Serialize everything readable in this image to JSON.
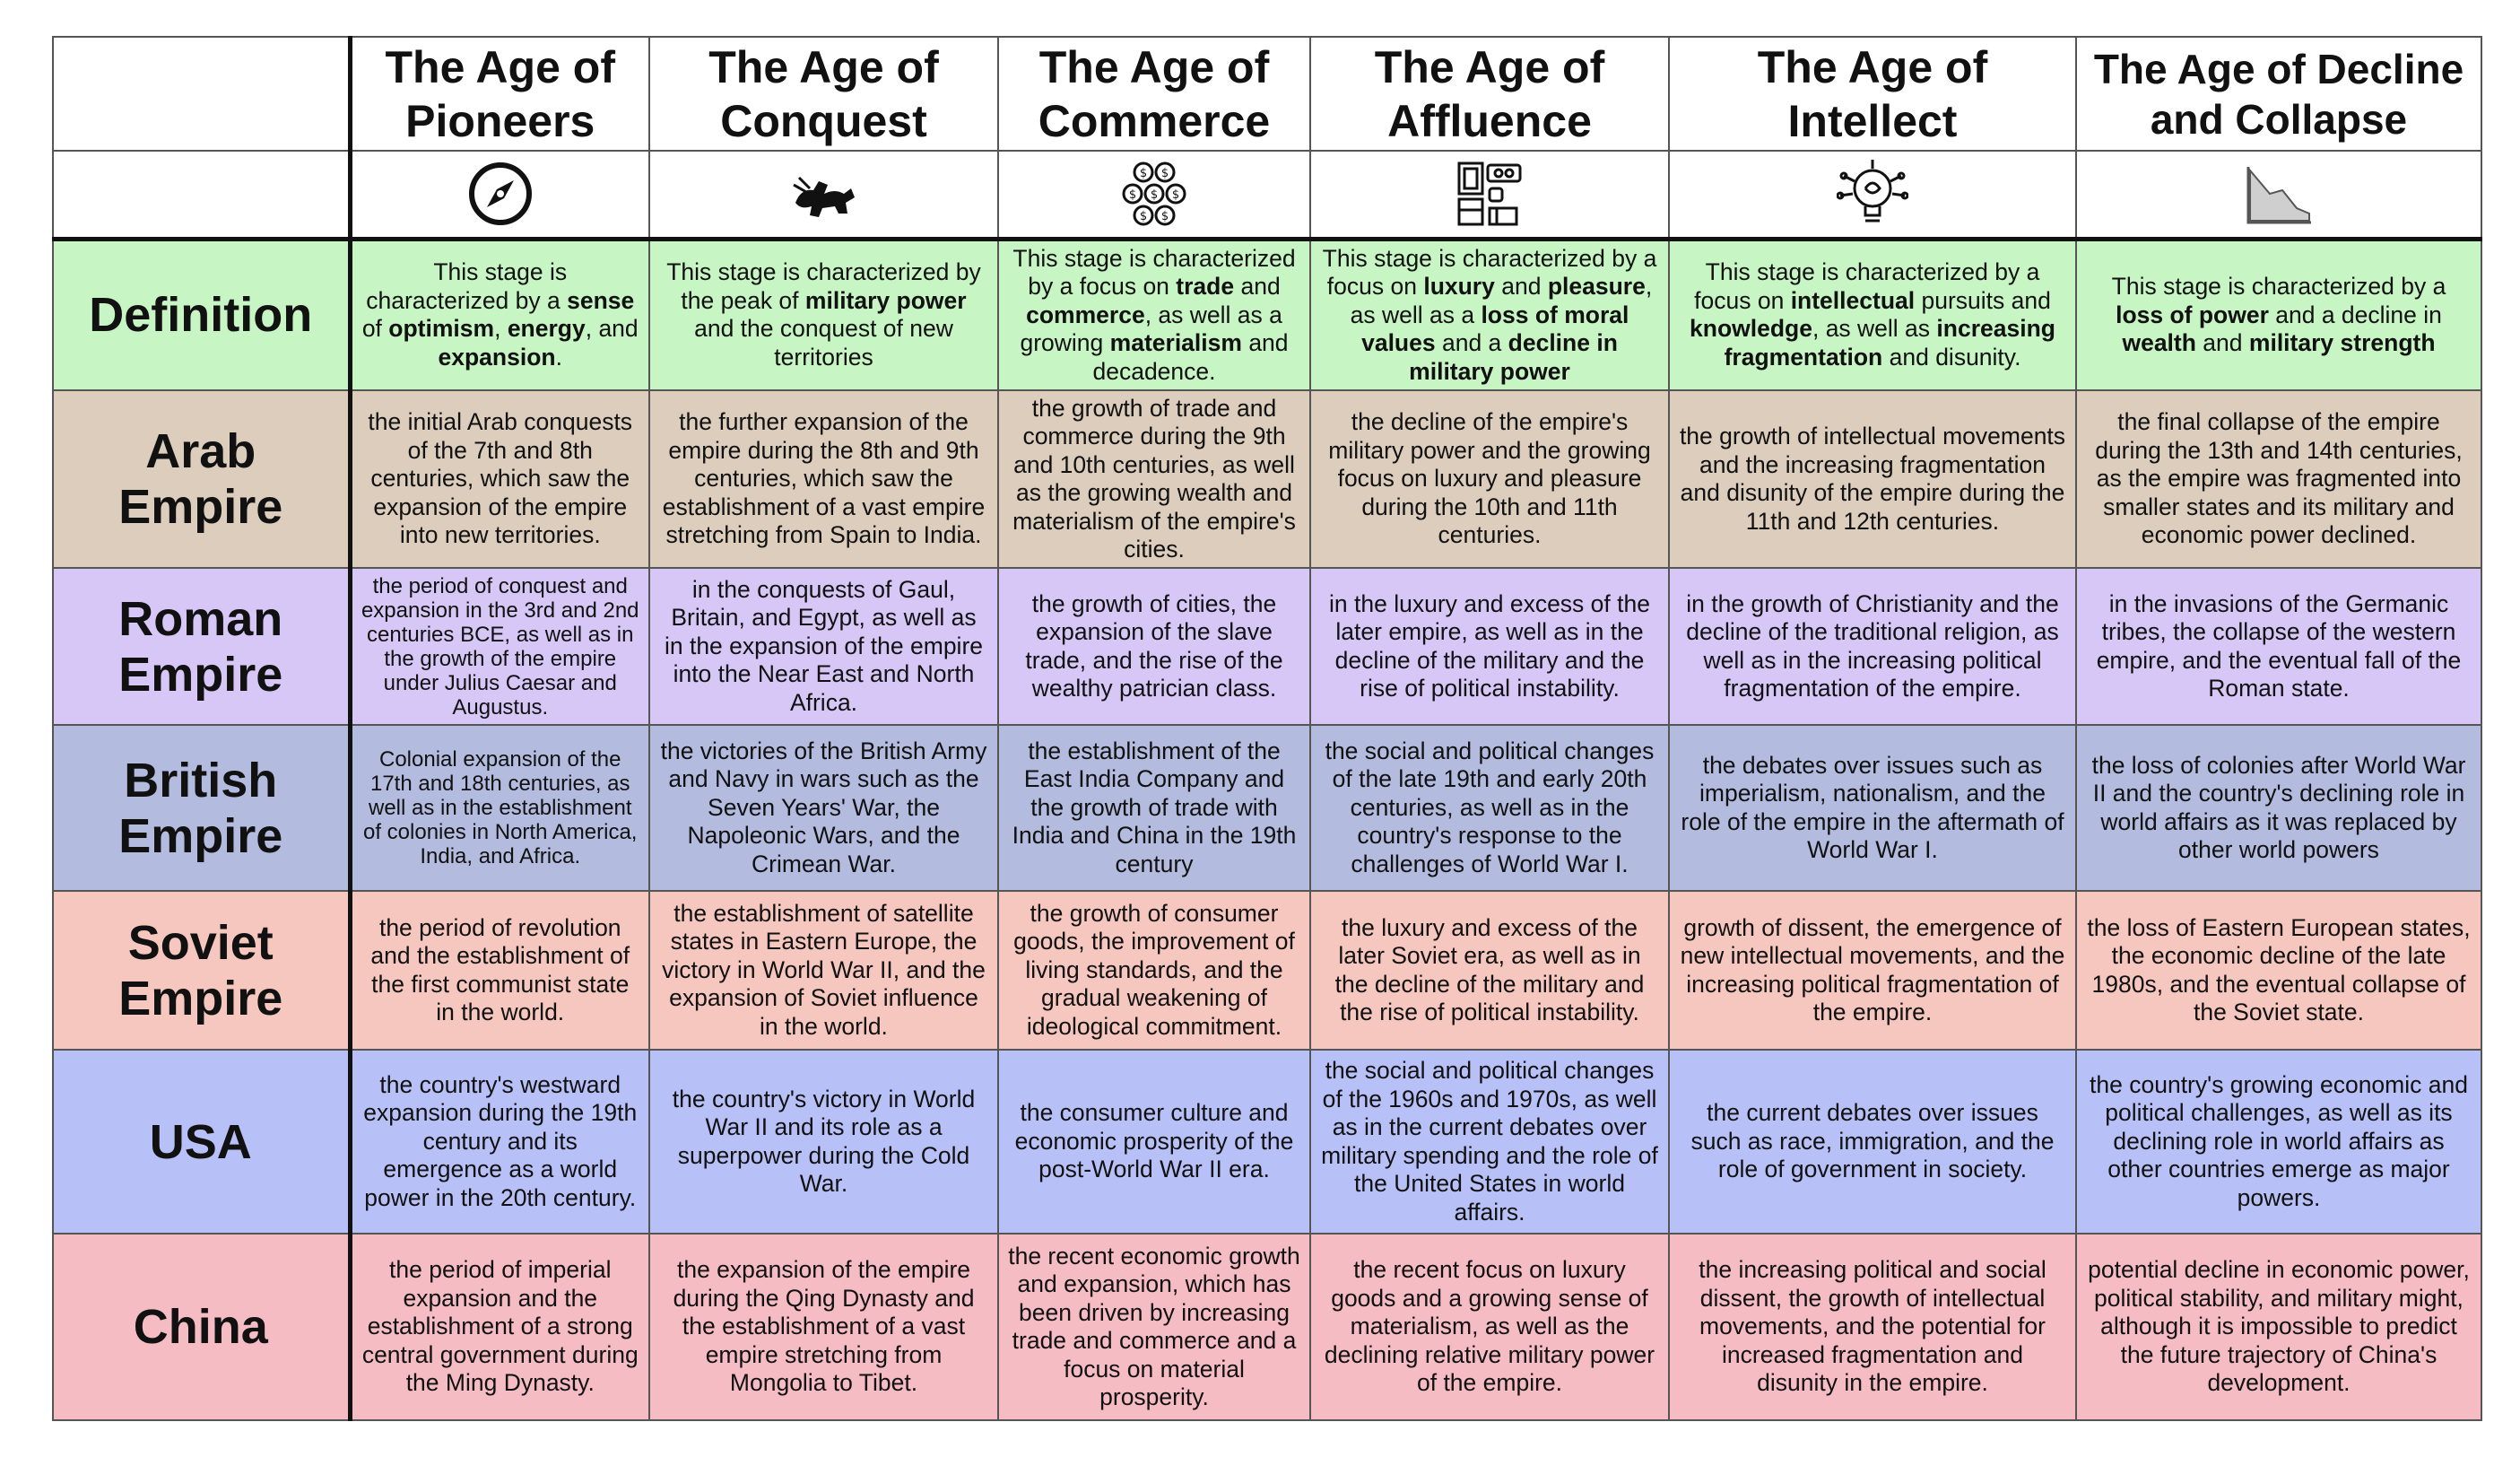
{
  "headers": {
    "pioneers": "The Age of Pioneers",
    "conquest": "The Age of Conquest",
    "commerce": "The Age of Commerce",
    "affluence": "The Age of Affluence",
    "intellect": "The Age of Intellect",
    "decline": "The Age of Decline and Collapse"
  },
  "icons": {
    "pioneers": "compass-icon",
    "conquest": "cavalry-charge-icon",
    "commerce": "coins-icon",
    "affluence": "luxury-goods-icon",
    "intellect": "lightbulb-brain-icon",
    "decline": "declining-chart-icon"
  },
  "rows": {
    "definition": {
      "label": "Definition",
      "cells": {
        "pioneers": [
          "This stage is characterized by a ",
          "sense",
          " of ",
          "optimism",
          ", ",
          "energy",
          ", and ",
          "expansion",
          "."
        ],
        "conquest": [
          "This stage is characterized by the peak of ",
          "military power",
          " and the conquest of new territories"
        ],
        "commerce": [
          "This stage is characterized by a focus on ",
          "trade",
          " and ",
          "commerce",
          ", as well as a growing ",
          "materialism",
          " and decadence."
        ],
        "affluence": [
          "This stage is characterized by a focus on ",
          "luxury",
          " and ",
          "pleasure",
          ", as well as a ",
          "loss of moral values",
          " and a ",
          "decline in military power"
        ],
        "intellect": [
          "This stage is characterized by a focus on ",
          "intellectual",
          " pursuits and ",
          "knowledge",
          ", as well as ",
          "increasing fragmentation",
          " and disunity."
        ],
        "decline": [
          "This stage is characterized by a ",
          "loss of power",
          " and a decline in ",
          "wealth",
          " and ",
          "military strength"
        ]
      }
    },
    "arab": {
      "label": "Arab Empire",
      "cells": {
        "pioneers": "the initial Arab conquests of the 7th and 8th centuries, which saw the expansion of the empire into new territories.",
        "conquest": "the further expansion of the empire during the 8th and 9th centuries, which saw the establishment of a vast empire stretching from Spain to India.",
        "commerce": "the growth of trade and commerce during the 9th and 10th centuries, as well as the growing wealth and materialism of the empire's cities.",
        "affluence": "the decline of the empire's military power and the growing focus on luxury and pleasure during the 10th and 11th centuries.",
        "intellect": "the growth of intellectual movements and the increasing fragmentation and disunity of the empire during the 11th and 12th centuries.",
        "decline": "the final collapse of the empire during the 13th and 14th centuries, as the empire was fragmented into smaller states and its military and economic power declined."
      }
    },
    "roman": {
      "label": "Roman Empire",
      "cells": {
        "pioneers": "the period of conquest and expansion in the 3rd and 2nd centuries BCE, as well as in the growth of the empire under Julius Caesar and Augustus.",
        "conquest": "in the conquests of Gaul, Britain, and Egypt, as well as in the expansion of the empire into the Near East and North Africa.",
        "commerce": "the growth of cities, the expansion of the slave trade, and the rise of the wealthy patrician class.",
        "affluence": "in the luxury and excess of the later empire, as well as in the decline of the military and the rise of political instability.",
        "intellect": "in the growth of Christianity and the decline of the traditional religion, as well as in the increasing political fragmentation of the empire.",
        "decline": "in the invasions of the Germanic tribes, the collapse of the western empire, and the eventual fall of the Roman state."
      }
    },
    "british": {
      "label": "British Empire",
      "cells": {
        "pioneers": "Colonial expansion of the 17th and 18th centuries, as well as in the establishment of colonies in North America, India, and Africa.",
        "conquest": "the victories of the British Army and Navy in wars such as the Seven Years' War, the Napoleonic Wars, and the Crimean War.",
        "commerce": "the establishment of the East India Company and the growth of trade with India and China in the 19th century",
        "affluence": "the social and political changes of the late 19th and early 20th centuries, as well as in the country's response to the challenges of World War I.",
        "intellect": "the debates over issues such as imperialism, nationalism, and the role of the empire in the aftermath of World War I.",
        "decline": "the loss of colonies after World War II and the country's declining role in world affairs as it was replaced by other world powers"
      }
    },
    "soviet": {
      "label": "Soviet Empire",
      "cells": {
        "pioneers": "the period of revolution and the establishment of the first communist state in the world.",
        "conquest": "the establishment of satellite states in Eastern Europe, the victory in World War II, and the expansion of Soviet influence in the world.",
        "commerce": "the growth of consumer goods, the improvement of living standards, and the gradual weakening of ideological commitment.",
        "affluence": "the luxury and excess of the later Soviet era, as well as in the decline of the military and the rise of political instability.",
        "intellect": "growth of dissent, the emergence of new intellectual movements, and the increasing political fragmentation of the empire.",
        "decline": "the loss of Eastern European states, the economic decline of the late 1980s, and the eventual collapse of the Soviet state."
      }
    },
    "usa": {
      "label": "USA",
      "cells": {
        "pioneers": "the country's westward expansion during the 19th century and its emergence as a world power in the 20th century.",
        "conquest": "the country's victory in World War II and its role as a superpower during the Cold War.",
        "commerce": "the consumer culture and economic prosperity of the post-World War II era.",
        "affluence": "the social and political changes of the 1960s and 1970s, as well as in the current debates over military spending and the role of the United States in world affairs.",
        "intellect": "the current debates over issues such as race, immigration, and the role of government in society.",
        "decline": "the country's growing economic and political challenges, as well as its declining role in world affairs as other countries emerge as major powers."
      }
    },
    "china": {
      "label": "China",
      "cells": {
        "pioneers": "the period of imperial expansion and the establishment of a strong central government during the Ming Dynasty.",
        "conquest": "the expansion of the empire during the Qing Dynasty and the establishment of a vast empire stretching from Mongolia to Tibet.",
        "commerce": "the recent economic growth and expansion, which has been driven by increasing trade and commerce and a focus on material prosperity.",
        "affluence": "the recent focus on luxury goods and a growing sense of materialism, as well as the declining relative military power of the empire.",
        "intellect": "the increasing political and social dissent, the growth of intellectual movements, and the potential for increased fragmentation and disunity in the empire.",
        "decline": "potential decline in economic power, political stability, and military might, although it is impossible to predict the future trajectory of China's development."
      }
    }
  },
  "colors": {
    "definition": "#c7f5c3",
    "arab": "#dccdbd",
    "roman": "#d6c7f6",
    "british": "#b3bbdf",
    "soviet": "#f6c7bf",
    "usa": "#b8c0f8",
    "china": "#f6bcc4"
  }
}
